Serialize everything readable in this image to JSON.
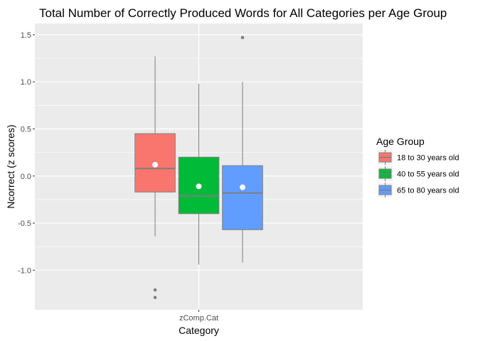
{
  "chart_data": {
    "type": "box",
    "title": "Total Number of Correctly Produced Words for All Categories per Age Group",
    "xlabel": "Category",
    "ylabel": "Ncorrect (z scores)",
    "categories": [
      "zComp.Cat"
    ],
    "ylim": [
      -1.42,
      1.62
    ],
    "yticks": [
      -1.0,
      -0.5,
      0.0,
      0.5,
      1.0,
      1.5
    ],
    "ytick_labels": [
      "-1.0",
      "-0.5",
      "0.0",
      "0.5",
      "1.0",
      "1.5"
    ],
    "grid": true,
    "legend": {
      "title": "Age Group",
      "position": "right"
    },
    "series": [
      {
        "name": "18 to 30 years old",
        "color": "#F8766D",
        "whisker_low": -0.64,
        "q1": -0.17,
        "median": 0.08,
        "q3": 0.45,
        "whisker_high": 1.27,
        "mean": 0.12,
        "outliers": [
          -1.21,
          -1.29
        ]
      },
      {
        "name": "40 to 55 years old",
        "color": "#00BA38",
        "whisker_low": -0.94,
        "q1": -0.4,
        "median": -0.21,
        "q3": 0.2,
        "whisker_high": 0.98,
        "mean": -0.11,
        "outliers": []
      },
      {
        "name": "65 to 80 years old",
        "color": "#619CFF",
        "whisker_low": -0.92,
        "q1": -0.57,
        "median": -0.18,
        "q3": 0.11,
        "whisker_high": 1.0,
        "mean": -0.12,
        "outliers": [
          1.47
        ]
      }
    ]
  }
}
